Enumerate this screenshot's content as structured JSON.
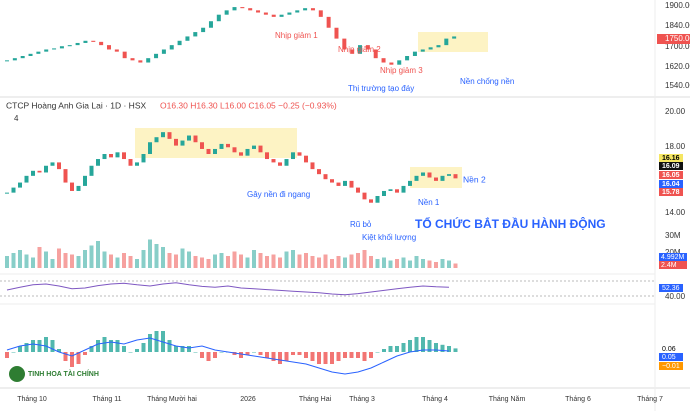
{
  "top_panel": {
    "closes": [
      1650,
      1660,
      1670,
      1680,
      1690,
      1700,
      1705,
      1715,
      1720,
      1730,
      1740,
      1735,
      1720,
      1700,
      1690,
      1660,
      1650,
      1640,
      1660,
      1680,
      1700,
      1720,
      1740,
      1760,
      1780,
      1800,
      1830,
      1860,
      1880,
      1895,
      1890,
      1880,
      1870,
      1860,
      1850,
      1860,
      1870,
      1880,
      1890,
      1880,
      1850,
      1800,
      1750,
      1700,
      1680,
      1720,
      1700,
      1660,
      1640,
      1630,
      1650,
      1670,
      1690,
      1700,
      1710,
      1720,
      1750,
      1760
    ],
    "price_labels": [
      "1900.00",
      "1840.00",
      "1700.00",
      "1620.00",
      "1540.00"
    ],
    "current_price": "1750.00",
    "annotations": [
      "Nhịp giảm 1",
      "Nhịp giảm 2",
      "Nhịp giảm 3",
      "Thị trường tạo đáy",
      "Nền chống nền"
    ]
  },
  "header": {
    "symbol": "CTCP Hoàng Anh Gia Lai · 1D · HSX",
    "ohlc": "O16.30 H16.30 L16.00 C16.05 −0.25 (−0.93%)",
    "collapse": "4"
  },
  "main_panel": {
    "closes": [
      15.2,
      15.5,
      15.8,
      16.2,
      16.5,
      16.4,
      16.8,
      17.0,
      16.6,
      15.8,
      15.3,
      15.6,
      16.2,
      16.8,
      17.2,
      17.5,
      17.3,
      17.6,
      17.2,
      16.8,
      17.0,
      17.5,
      18.2,
      18.5,
      18.8,
      18.4,
      18.0,
      18.3,
      18.6,
      18.2,
      17.8,
      17.5,
      17.8,
      18.1,
      17.9,
      17.6,
      17.4,
      17.8,
      18.0,
      17.6,
      17.2,
      17.0,
      16.8,
      17.2,
      17.6,
      17.4,
      17.0,
      16.6,
      16.3,
      16.0,
      15.8,
      15.6,
      15.9,
      15.5,
      15.2,
      14.8,
      14.6,
      15.0,
      15.3,
      15.4,
      15.2,
      15.6,
      15.9,
      16.2,
      16.4,
      16.1,
      15.9,
      16.2,
      16.3,
      16.05
    ],
    "price_labels": [
      "20.00",
      "18.00",
      "14.00"
    ],
    "price_tags": [
      "16.16",
      "16.09",
      "16.05",
      "16.04",
      "15.78"
    ],
    "annotations": [
      "Gây nền đi ngang",
      "Rũ bỏ",
      "Nền 1",
      "Nền 2",
      "TỔ CHỨC BẮT ĐẦU HÀNH ĐỘNG",
      "Kiệt khối lượng"
    ]
  },
  "volume": {
    "values": [
      8,
      10,
      12,
      9,
      7,
      14,
      11,
      6,
      13,
      10,
      9,
      8,
      12,
      15,
      18,
      11,
      9,
      7,
      10,
      8,
      6,
      12,
      19,
      16,
      14,
      10,
      9,
      13,
      11,
      8,
      7,
      6,
      9,
      10,
      8,
      11,
      9,
      7,
      12,
      10,
      8,
      9,
      7,
      11,
      12,
      9,
      10,
      8,
      7,
      9,
      6,
      8,
      7,
      9,
      10,
      12,
      8,
      6,
      7,
      5,
      6,
      7,
      5,
      8,
      6,
      5,
      4,
      6,
      5,
      3
    ],
    "labels": [
      "30M",
      "20M"
    ],
    "tags": [
      "4.992M",
      "2.4M"
    ]
  },
  "rsi": {
    "values": [
      45,
      52,
      58,
      60,
      55,
      48,
      50,
      56,
      60,
      62,
      58,
      55,
      60,
      63,
      58,
      54,
      52,
      55,
      50,
      48,
      46,
      44,
      42,
      40,
      38,
      35,
      33,
      36,
      40,
      44,
      48,
      52,
      55,
      53,
      52
    ],
    "tag": "52.36",
    "label": "40.00"
  },
  "macd": {
    "histogram": [
      -0.1,
      0,
      0.1,
      0.15,
      0.2,
      0.2,
      0.25,
      0.2,
      0.05,
      -0.15,
      -0.25,
      -0.2,
      -0.05,
      0.1,
      0.2,
      0.25,
      0.2,
      0.2,
      0.1,
      0,
      0.05,
      0.15,
      0.3,
      0.35,
      0.35,
      0.2,
      0.1,
      0.1,
      0.1,
      0,
      -0.1,
      -0.15,
      -0.1,
      0,
      0,
      -0.05,
      -0.1,
      -0.05,
      0,
      -0.05,
      -0.1,
      -0.15,
      -0.2,
      -0.15,
      -0.05,
      -0.05,
      -0.1,
      -0.15,
      -0.2,
      -0.2,
      -0.2,
      -0.15,
      -0.1,
      -0.1,
      -0.1,
      -0.15,
      -0.1,
      0,
      0.05,
      0.1,
      0.1,
      0.15,
      0.2,
      0.25,
      0.25,
      0.2,
      0.15,
      0.12,
      0.1,
      0.06
    ],
    "line": [
      0.1,
      0.3,
      0.4,
      0.3,
      0,
      -0.2,
      0.1,
      0.4,
      0.5,
      0.4,
      0.6,
      0.7,
      0.5,
      0.3,
      0.2,
      0.3,
      0.1,
      0,
      -0.1,
      -0.2,
      -0.3,
      -0.4,
      -0.5,
      -0.6,
      -0.8,
      -1.0,
      -1.1,
      -1.0,
      -0.8,
      -0.5,
      -0.2,
      0,
      0.1,
      0.1,
      0.05
    ],
    "tags": [
      "0.06",
      "0.05",
      "−0.01"
    ]
  },
  "logo": "TINH HOA TÀI CHÍNH",
  "x_axis": [
    "Tháng 10",
    "Tháng 11",
    "Tháng Mười hai",
    "2026",
    "Tháng Hai",
    "Tháng 3",
    "Tháng 4",
    "Tháng Năm",
    "Tháng 6",
    "Tháng 7"
  ]
}
